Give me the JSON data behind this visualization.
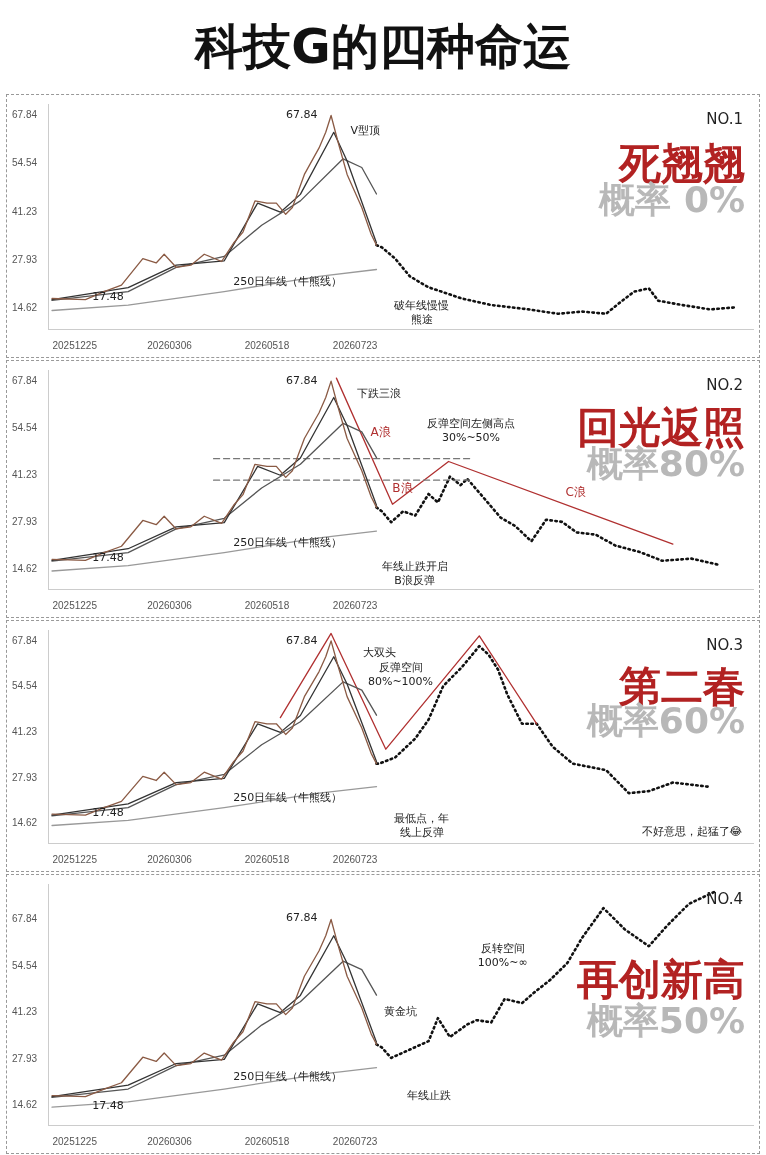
{
  "chart_data": [
    {
      "type": "other",
      "title": "科技G的四种命运"
    },
    {
      "type": "line",
      "title": "死翘翘",
      "subtitle": "概率 0%",
      "marker": "none",
      "xlim": [
        "2025-12-05",
        "2027-05-17"
      ],
      "xticks": [
        {
          "value": "2025-12-25",
          "label": "20251225"
        },
        {
          "value": "2026-03-06",
          "label": "20260306"
        },
        {
          "value": "2026-05-18",
          "label": "20260518"
        },
        {
          "value": "2026-07-23",
          "label": "20260723"
        }
      ],
      "ylim": [
        9,
        71
      ],
      "yticks": [
        14.62,
        27.93,
        41.23,
        54.54,
        67.84
      ],
      "series": [
        {
          "color": "#8a5a44",
          "x": [
            "2025-12-08",
            "2026-01-02",
            "2026-01-16",
            "2026-01-29",
            "2026-02-14",
            "2026-02-24",
            "2026-03-02",
            "2026-03-11",
            "2026-03-22",
            "2026-04-01",
            "2026-04-14",
            "2026-04-23",
            "2026-04-30",
            "2026-05-09",
            "2026-05-18",
            "2026-05-25",
            "2026-06-01",
            "2026-06-06",
            "2026-06-15",
            "2026-06-26",
            "2026-07-01",
            "2026-07-05",
            "2026-07-10",
            "2026-07-17",
            "2026-07-28",
            "2026-08-04",
            "2026-08-08"
          ],
          "values": [
            17.4,
            17.1,
            19.3,
            21.1,
            28.4,
            27.2,
            29.6,
            26.0,
            26.6,
            29.6,
            27.6,
            32.7,
            35.7,
            44.3,
            43.7,
            43.7,
            40.6,
            42.5,
            51.6,
            58.9,
            63.2,
            67.84,
            60.8,
            51.6,
            42.5,
            35.1,
            32.1
          ]
        },
        {
          "color": "#333333",
          "x": [
            "2025-12-08",
            "2026-02-03",
            "2026-03-11",
            "2026-04-16",
            "2026-05-11",
            "2026-05-28",
            "2026-06-12",
            "2026-07-07",
            "2026-07-17",
            "2026-08-08"
          ],
          "values": [
            17.1,
            20.4,
            26.6,
            27.8,
            43.7,
            41.2,
            46.1,
            63.2,
            55.3,
            32.7
          ]
        },
        {
          "color": "#555555",
          "x": [
            "2025-12-08",
            "2026-02-03",
            "2026-03-11",
            "2026-04-16",
            "2026-05-14",
            "2026-06-12",
            "2026-07-14",
            "2026-07-28",
            "2026-08-08"
          ],
          "values": [
            16.9,
            19.3,
            26.0,
            29.0,
            37.6,
            44.3,
            55.9,
            53.5,
            46.2
          ]
        },
        {
          "color": "#999999",
          "x": [
            "2025-12-08",
            "2026-02-03",
            "2026-04-16",
            "2026-06-26",
            "2026-08-08"
          ],
          "values": [
            14.1,
            15.6,
            19.3,
            23.5,
            25.4
          ]
        },
        {
          "color": "#111111",
          "line_style": "dotted",
          "x": [
            "2026-08-08",
            "2026-08-12",
            "2026-08-22",
            "2026-09-02",
            "2026-09-16",
            "2026-10-11",
            "2026-11-02",
            "2026-11-30",
            "2026-12-22",
            "2027-01-09",
            "2027-01-27",
            "2027-02-06",
            "2027-02-17",
            "2027-02-28",
            "2027-03-07",
            "2027-03-25",
            "2027-04-15",
            "2027-05-05"
          ],
          "values": [
            32.1,
            31.5,
            28.4,
            23.5,
            20.5,
            17.4,
            15.6,
            14.4,
            13.2,
            13.8,
            13.2,
            16.2,
            19.3,
            20.2,
            16.8,
            15.6,
            14.4,
            15.0
          ]
        }
      ],
      "annotations": [
        "NO.1",
        "67.84",
        "V型顶",
        "17.48",
        "250日年线（牛熊线）",
        "破年线慢慢熊途"
      ]
    },
    {
      "type": "line",
      "title": "回光返照",
      "subtitle": "概率80%",
      "marker": "none",
      "xlim": [
        "2025-12-05",
        "2027-05-17"
      ],
      "xticks": [
        {
          "value": "2025-12-25",
          "label": "20251225"
        },
        {
          "value": "2026-03-06",
          "label": "20260306"
        },
        {
          "value": "2026-05-18",
          "label": "20260518"
        },
        {
          "value": "2026-07-23",
          "label": "20260723"
        }
      ],
      "ylim": [
        9,
        71
      ],
      "yticks": [
        14.62,
        27.93,
        41.23,
        54.54,
        67.84
      ],
      "series": [
        {
          "color": "#8a5a44",
          "x": [
            "2025-12-08",
            "2026-01-02",
            "2026-01-16",
            "2026-01-29",
            "2026-02-14",
            "2026-02-24",
            "2026-03-02",
            "2026-03-11",
            "2026-03-22",
            "2026-04-01",
            "2026-04-14",
            "2026-04-23",
            "2026-04-30",
            "2026-05-09",
            "2026-05-18",
            "2026-05-25",
            "2026-06-01",
            "2026-06-06",
            "2026-06-15",
            "2026-06-26",
            "2026-07-01",
            "2026-07-05",
            "2026-07-10",
            "2026-07-17",
            "2026-07-28",
            "2026-08-04",
            "2026-08-08"
          ],
          "values": [
            17.4,
            17.1,
            19.3,
            21.1,
            28.4,
            27.2,
            29.6,
            26.0,
            26.6,
            29.6,
            27.6,
            32.7,
            35.7,
            44.3,
            43.7,
            43.7,
            40.6,
            42.5,
            51.6,
            58.9,
            63.2,
            67.84,
            60.8,
            51.6,
            42.5,
            35.1,
            32.1
          ]
        },
        {
          "color": "#333333",
          "x": [
            "2025-12-08",
            "2026-02-03",
            "2026-03-11",
            "2026-04-16",
            "2026-05-11",
            "2026-05-28",
            "2026-06-12",
            "2026-07-07",
            "2026-07-17",
            "2026-08-08"
          ],
          "values": [
            17.1,
            20.4,
            26.6,
            27.8,
            43.7,
            41.2,
            46.1,
            63.2,
            55.3,
            32.7
          ]
        },
        {
          "color": "#555555",
          "x": [
            "2025-12-08",
            "2026-02-03",
            "2026-03-11",
            "2026-04-16",
            "2026-05-14",
            "2026-06-12",
            "2026-07-14",
            "2026-07-28",
            "2026-08-08"
          ],
          "values": [
            16.9,
            19.3,
            26.0,
            29.0,
            37.6,
            44.3,
            55.9,
            53.5,
            46.2
          ]
        },
        {
          "color": "#999999",
          "x": [
            "2025-12-08",
            "2026-02-03",
            "2026-04-16",
            "2026-06-26",
            "2026-08-08"
          ],
          "values": [
            14.1,
            15.6,
            19.3,
            23.5,
            25.4
          ]
        },
        {
          "color": "#777777",
          "line_style": "dashed",
          "x": [
            "2026-04-08",
            "2026-10-17"
          ],
          "values": [
            45.9,
            45.9
          ]
        },
        {
          "color": "#777777",
          "line_style": "dashed",
          "x": [
            "2026-04-08",
            "2026-10-17"
          ],
          "values": [
            39.8,
            39.8
          ]
        },
        {
          "color": "#b03030",
          "x": [
            "2026-07-09",
            "2026-08-20",
            "2026-10-01",
            "2027-03-18"
          ],
          "values": [
            68.7,
            33.0,
            45.1,
            21.7
          ]
        },
        {
          "color": "#111111",
          "line_style": "dotted",
          "x": [
            "2026-08-08",
            "2026-08-12",
            "2026-08-19",
            "2026-08-28",
            "2026-09-06",
            "2026-09-16",
            "2026-09-23",
            "2026-10-02",
            "2026-10-10",
            "2026-10-15",
            "2026-10-26",
            "2026-11-09",
            "2026-11-20",
            "2026-12-02",
            "2026-12-13",
            "2026-12-25",
            "2027-01-05",
            "2027-01-19",
            "2027-02-03",
            "2027-02-21",
            "2027-03-10",
            "2027-04-01",
            "2027-04-22"
          ],
          "values": [
            32.1,
            31.0,
            27.9,
            31.0,
            29.8,
            35.9,
            33.5,
            40.8,
            38.4,
            40.2,
            35.4,
            29.2,
            26.8,
            22.5,
            28.6,
            28.0,
            25.0,
            24.4,
            21.3,
            19.5,
            17.0,
            17.6,
            15.8
          ]
        }
      ],
      "annotations": [
        "NO.2",
        "67.84",
        "下跌三浪",
        {
          "text": "A浪",
          "x": "2026-07-30",
          "y": 50.85
        },
        {
          "text": "B浪",
          "x": "2026-09-10",
          "y": 39.05
        },
        {
          "text": "C浪",
          "x": "2026-12-23",
          "y": 33.4
        },
        "反弹空间左侧高点30%~50%",
        "17.48",
        "250日年线（牛熊线）",
        "年线止跌开启B浪反弹"
      ]
    },
    {
      "type": "line",
      "title": "第二春",
      "subtitle": "概率60%",
      "marker": "none",
      "xlim": [
        "2025-12-05",
        "2027-05-17"
      ],
      "xticks": [
        {
          "value": "2025-12-25",
          "label": "20251225"
        },
        {
          "value": "2026-03-06",
          "label": "20260306"
        },
        {
          "value": "2026-05-18",
          "label": "20260518"
        },
        {
          "value": "2026-07-23",
          "label": "20260723"
        }
      ],
      "ylim": [
        9,
        71
      ],
      "yticks": [
        14.62,
        27.93,
        41.23,
        54.54,
        67.84
      ],
      "series": [
        {
          "color": "#8a5a44",
          "x": [
            "2025-12-08",
            "2026-01-02",
            "2026-01-16",
            "2026-01-29",
            "2026-02-14",
            "2026-02-24",
            "2026-03-02",
            "2026-03-11",
            "2026-03-22",
            "2026-04-01",
            "2026-04-14",
            "2026-04-23",
            "2026-04-30",
            "2026-05-09",
            "2026-05-18",
            "2026-05-25",
            "2026-06-01",
            "2026-06-06",
            "2026-06-15",
            "2026-06-26",
            "2026-07-01",
            "2026-07-05",
            "2026-07-10",
            "2026-07-17",
            "2026-07-28",
            "2026-08-04",
            "2026-08-08"
          ],
          "values": [
            17.4,
            17.1,
            19.3,
            21.1,
            28.4,
            27.2,
            29.6,
            26.0,
            26.6,
            29.6,
            27.6,
            32.7,
            35.7,
            44.3,
            43.7,
            43.7,
            40.6,
            42.5,
            51.6,
            58.9,
            63.2,
            67.84,
            60.8,
            51.6,
            42.5,
            35.1,
            32.1
          ]
        },
        {
          "color": "#333333",
          "x": [
            "2025-12-08",
            "2026-02-03",
            "2026-03-11",
            "2026-04-16",
            "2026-05-11",
            "2026-05-28",
            "2026-06-12",
            "2026-07-07",
            "2026-07-17",
            "2026-08-08"
          ],
          "values": [
            17.1,
            20.4,
            26.6,
            27.8,
            43.7,
            41.2,
            46.1,
            63.2,
            55.3,
            32.7
          ]
        },
        {
          "color": "#555555",
          "x": [
            "2025-12-08",
            "2026-02-03",
            "2026-03-11",
            "2026-04-16",
            "2026-05-14",
            "2026-06-12",
            "2026-07-14",
            "2026-07-28",
            "2026-08-08"
          ],
          "values": [
            16.9,
            19.3,
            26.0,
            29.0,
            37.6,
            44.3,
            55.9,
            53.5,
            46.2
          ]
        },
        {
          "color": "#999999",
          "x": [
            "2025-12-08",
            "2026-02-03",
            "2026-04-16",
            "2026-06-26",
            "2026-08-08"
          ],
          "values": [
            14.1,
            15.6,
            19.3,
            23.5,
            25.4
          ]
        },
        {
          "color": "#b03030",
          "x": [
            "2026-05-28",
            "2026-07-05",
            "2026-08-15",
            "2026-10-24",
            "2026-12-06"
          ],
          "values": [
            45.5,
            70.0,
            36.3,
            69.3,
            43.7
          ]
        },
        {
          "color": "#111111",
          "line_style": "dotted",
          "x": [
            "2026-08-08",
            "2026-08-10",
            "2026-08-22",
            "2026-09-06",
            "2026-09-16",
            "2026-09-27",
            "2026-10-11",
            "2026-10-24",
            "2026-10-31",
            "2026-11-07",
            "2026-11-14",
            "2026-11-25",
            "2026-12-06",
            "2026-12-18",
            "2027-01-02",
            "2027-01-27",
            "2027-02-13",
            "2027-02-28",
            "2027-03-18",
            "2027-04-13"
          ],
          "values": [
            32.1,
            32.1,
            33.9,
            39.4,
            44.9,
            54.7,
            60.2,
            66.3,
            63.8,
            59.5,
            52.2,
            43.7,
            43.7,
            37.0,
            32.1,
            30.2,
            23.5,
            24.1,
            26.6,
            25.4
          ]
        }
      ],
      "annotations": [
        "NO.3",
        "不好意思，起猛了😂",
        "67.84",
        "大双头",
        "反弹空间80%~100%",
        "17.48",
        "250日年线（牛熊线）",
        "最低点，年线上反弹"
      ]
    },
    {
      "type": "line",
      "title": "再创新高",
      "subtitle": "概率50%",
      "marker": "none",
      "xlim": [
        "2025-12-05",
        "2027-05-17"
      ],
      "xticks": [
        {
          "value": "2025-12-25",
          "label": "20251225"
        },
        {
          "value": "2026-03-06",
          "label": "20260306"
        },
        {
          "value": "2026-05-18",
          "label": "20260518"
        },
        {
          "value": "2026-07-23",
          "label": "20260723"
        }
      ],
      "ylim": [
        9,
        78
      ],
      "yticks": [
        14.62,
        27.93,
        41.23,
        54.54,
        67.84
      ],
      "series": [
        {
          "color": "#8a5a44",
          "x": [
            "2025-12-08",
            "2026-01-02",
            "2026-01-16",
            "2026-01-29",
            "2026-02-14",
            "2026-02-24",
            "2026-03-02",
            "2026-03-11",
            "2026-03-22",
            "2026-04-01",
            "2026-04-14",
            "2026-04-23",
            "2026-04-30",
            "2026-05-09",
            "2026-05-18",
            "2026-05-25",
            "2026-06-01",
            "2026-06-06",
            "2026-06-15",
            "2026-06-26",
            "2026-07-01",
            "2026-07-05",
            "2026-07-10",
            "2026-07-17",
            "2026-07-28",
            "2026-08-04",
            "2026-08-08"
          ],
          "values": [
            17.4,
            17.1,
            19.3,
            21.1,
            28.4,
            27.2,
            29.6,
            26.0,
            26.6,
            29.6,
            27.6,
            32.7,
            35.7,
            44.3,
            43.7,
            43.7,
            40.6,
            42.5,
            51.6,
            58.9,
            63.2,
            67.84,
            60.8,
            51.6,
            42.5,
            35.1,
            32.1
          ]
        },
        {
          "color": "#333333",
          "x": [
            "2025-12-08",
            "2026-02-03",
            "2026-03-11",
            "2026-04-16",
            "2026-05-11",
            "2026-05-28",
            "2026-06-12",
            "2026-07-07",
            "2026-07-17",
            "2026-08-08"
          ],
          "values": [
            17.1,
            20.4,
            26.6,
            27.8,
            43.7,
            41.2,
            46.1,
            63.2,
            55.3,
            32.7
          ]
        },
        {
          "color": "#555555",
          "x": [
            "2025-12-08",
            "2026-02-03",
            "2026-03-11",
            "2026-04-16",
            "2026-05-14",
            "2026-06-12",
            "2026-07-14",
            "2026-07-28",
            "2026-08-08"
          ],
          "values": [
            16.9,
            19.3,
            26.0,
            29.0,
            37.6,
            44.3,
            55.9,
            53.5,
            46.2
          ]
        },
        {
          "color": "#999999",
          "x": [
            "2025-12-08",
            "2026-02-03",
            "2026-04-16",
            "2026-06-26",
            "2026-08-08"
          ],
          "values": [
            14.1,
            15.6,
            19.3,
            23.5,
            25.4
          ]
        },
        {
          "color": "#111111",
          "line_style": "dotted",
          "x": [
            "2026-08-08",
            "2026-08-12",
            "2026-08-19",
            "2026-09-02",
            "2026-09-16",
            "2026-09-23",
            "2026-10-02",
            "2026-10-15",
            "2026-10-22",
            "2026-11-02",
            "2026-11-12",
            "2026-11-25",
            "2026-12-04",
            "2026-12-16",
            "2026-12-29",
            "2027-01-09",
            "2027-01-25",
            "2027-02-10",
            "2027-02-28",
            "2027-03-14",
            "2027-03-30",
            "2027-04-19"
          ],
          "values": [
            32.1,
            31.2,
            28.2,
            30.6,
            33.0,
            39.6,
            34.2,
            37.8,
            39.0,
            38.4,
            45.1,
            43.9,
            46.9,
            50.5,
            55.4,
            62.6,
            71.1,
            65.0,
            60.2,
            66.2,
            72.3,
            75.9
          ]
        }
      ],
      "annotations": [
        "NO.4",
        "67.84",
        "黄金坑",
        "反转空间100%~∞",
        "17.48",
        "250日年线（牛熊线）",
        "年线止跌"
      ]
    }
  ]
}
